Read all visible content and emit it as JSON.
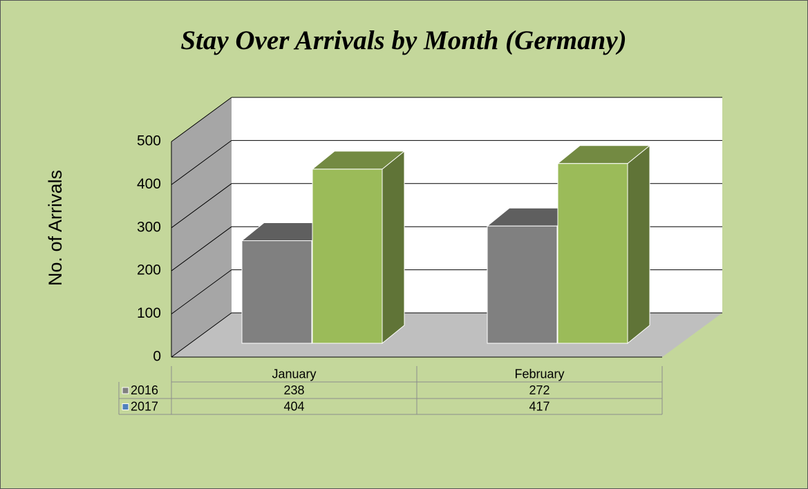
{
  "chart_data": {
    "type": "bar3d",
    "title": "Stay Over Arrivals by Month (Germany)",
    "y_label": "No. of Arrivals",
    "categories": [
      "January",
      "February"
    ],
    "series": [
      {
        "name": "2016",
        "color": "#808080",
        "key_color": "#808080",
        "values": [
          238,
          272
        ]
      },
      {
        "name": "2017",
        "color": "#9bbb59",
        "key_color": "#4f81bd",
        "values": [
          404,
          417
        ]
      }
    ],
    "ylim": [
      0,
      500
    ],
    "yticks": [
      0,
      100,
      200,
      300,
      400,
      500
    ],
    "grid": true,
    "data_table": true
  }
}
